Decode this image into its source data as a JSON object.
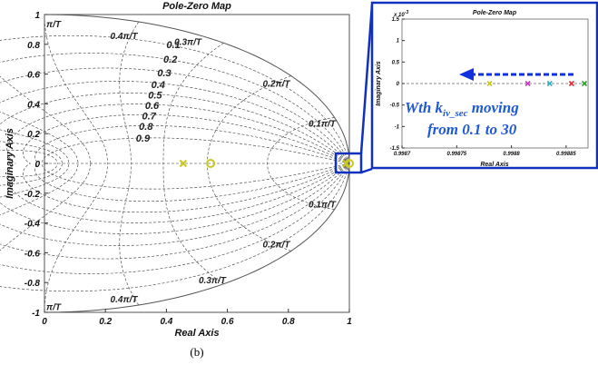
{
  "caption": "(b)",
  "chart_data": [
    {
      "type": "scatter",
      "title": "Pole-Zero Map",
      "xlabel": "Real Axis",
      "ylabel": "Imaginary Axis",
      "xlim": [
        0,
        1
      ],
      "ylim": [
        -1,
        1
      ],
      "x_ticks": [
        "0",
        "0.2",
        "0.4",
        "0.6",
        "0.8",
        "1"
      ],
      "y_ticks": [
        "1",
        "0.8",
        "0.6",
        "0.4",
        "0.2",
        "0",
        "-0.2",
        "-0.4",
        "-0.6",
        "-0.8",
        "-1"
      ],
      "grid": "z-plane damping and natural-frequency grid",
      "damping_labels": [
        "0.1",
        "0.2",
        "0.3",
        "0.4",
        "0.5",
        "0.6",
        "0.7",
        "0.8",
        "0.9"
      ],
      "natural_frequency_labels": [
        "0.4π/T",
        "0.3π/T",
        "0.2π/T",
        "0.1π/T",
        "π/T"
      ],
      "points": [
        {
          "kind": "pole",
          "x": 0.455,
          "y": 0,
          "color": "#c8c820"
        },
        {
          "kind": "zero",
          "x": 0.545,
          "y": 0,
          "color": "#c8c820"
        },
        {
          "kind": "pole",
          "x": 0.99,
          "y": 0,
          "color": "#c8c820"
        },
        {
          "kind": "zero",
          "x": 1.0,
          "y": 0,
          "color": "#c8c820"
        }
      ]
    },
    {
      "type": "scatter",
      "title": "Pole-Zero Map",
      "xlabel": "Real Axis",
      "ylabel": "Imaginary Axis",
      "multiplier_label": "x 10",
      "multiplier_exp": "-3",
      "xlim": [
        0.9987,
        0.99887
      ],
      "ylim": [
        -1.5,
        1.5
      ],
      "x_ticks": [
        "0.9987",
        "0.99875",
        "0.9988",
        "0.99885",
        "0.9989",
        "0.99895"
      ],
      "y_ticks": [
        "1.5",
        "1",
        "0.5",
        "0",
        "-0.5",
        "-1",
        "-1.5"
      ],
      "points": [
        {
          "kind": "pole",
          "x": 0.99878,
          "y": 0,
          "color": "#c8c820"
        },
        {
          "kind": "pole",
          "x": 0.998815,
          "y": 0,
          "color": "#c040c0"
        },
        {
          "kind": "pole",
          "x": 0.998835,
          "y": 0,
          "color": "#30b0c0"
        },
        {
          "kind": "pole",
          "x": 0.998855,
          "y": 0,
          "color": "#e03030"
        },
        {
          "kind": "pole",
          "x": 0.99887,
          "y": 0,
          "color": "#30a030"
        }
      ]
    }
  ],
  "annotation": {
    "line1_prefix": "Wth k",
    "line1_sub": "iv_sec",
    "line1_suffix": " moving",
    "line2": "from 0.1 to 30",
    "color": "#1f5ad6"
  }
}
